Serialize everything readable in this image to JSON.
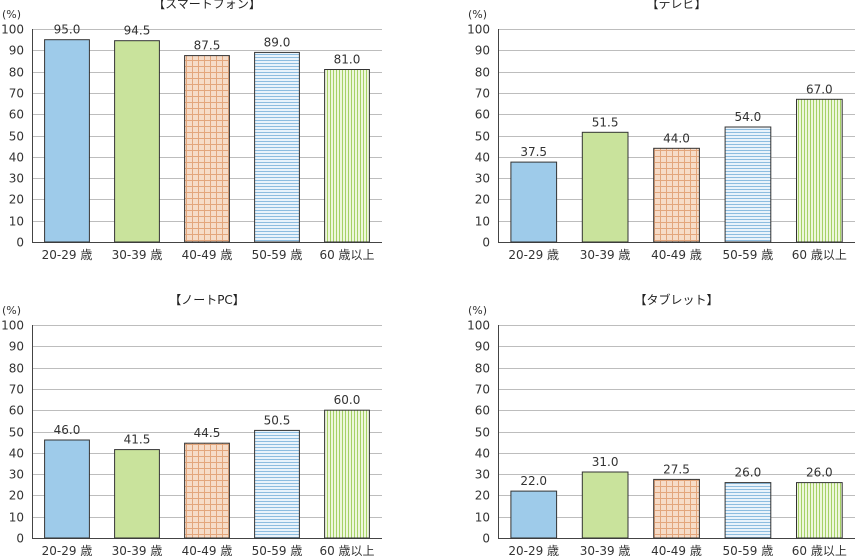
{
  "charts_meta": {
    "colors": {
      "c1": "#9ecbea",
      "c2": "#c9e39c",
      "c3_bg": "#f6dcc8",
      "c3_line": "#e3a67c",
      "c4_bg": "#e9f3fb",
      "c4_line": "#8dbde0",
      "c5_bg": "#eef7dc",
      "c5_line": "#a6d166"
    },
    "patterns": [
      "solid-blue",
      "solid-green",
      "grid-orange",
      "hstripe-blue",
      "vstripe-green"
    ]
  },
  "chart_data": [
    {
      "type": "bar",
      "title": "【スマートフォン】",
      "unit": "(%)",
      "categories": [
        "20-29 歳",
        "30-39 歳",
        "40-49 歳",
        "50-59 歳",
        "60 歳以上"
      ],
      "values": [
        95.0,
        94.5,
        87.5,
        89.0,
        81.0
      ],
      "value_labels": [
        "95.0",
        "94.5",
        "87.5",
        "89.0",
        "81.0"
      ],
      "ylim": [
        0,
        100
      ],
      "yticks": [
        0,
        10,
        20,
        30,
        40,
        50,
        60,
        70,
        80,
        90,
        100
      ],
      "grid": true,
      "legend": "none"
    },
    {
      "type": "bar",
      "title": "【テレビ】",
      "unit": "(%)",
      "categories": [
        "20-29 歳",
        "30-39 歳",
        "40-49 歳",
        "50-59 歳",
        "60 歳以上"
      ],
      "values": [
        37.5,
        51.5,
        44.0,
        54.0,
        67.0
      ],
      "value_labels": [
        "37.5",
        "51.5",
        "44.0",
        "54.0",
        "67.0"
      ],
      "ylim": [
        0,
        100
      ],
      "yticks": [
        0,
        10,
        20,
        30,
        40,
        50,
        60,
        70,
        80,
        90,
        100
      ],
      "grid": true,
      "legend": "none"
    },
    {
      "type": "bar",
      "title": "【ノートPC】",
      "unit": "(%)",
      "categories": [
        "20-29 歳",
        "30-39 歳",
        "40-49 歳",
        "50-59 歳",
        "60 歳以上"
      ],
      "values": [
        46.0,
        41.5,
        44.5,
        50.5,
        60.0
      ],
      "value_labels": [
        "46.0",
        "41.5",
        "44.5",
        "50.5",
        "60.0"
      ],
      "ylim": [
        0,
        100
      ],
      "yticks": [
        0,
        10,
        20,
        30,
        40,
        50,
        60,
        70,
        80,
        90,
        100
      ],
      "grid": true,
      "legend": "none"
    },
    {
      "type": "bar",
      "title": "【タブレット】",
      "unit": "(%)",
      "categories": [
        "20-29 歳",
        "30-39 歳",
        "40-49 歳",
        "50-59 歳",
        "60 歳以上"
      ],
      "values": [
        22.0,
        31.0,
        27.5,
        26.0,
        26.0
      ],
      "value_labels": [
        "22.0",
        "31.0",
        "27.5",
        "26.0",
        "26.0"
      ],
      "ylim": [
        0,
        100
      ],
      "yticks": [
        0,
        10,
        20,
        30,
        40,
        50,
        60,
        70,
        80,
        90,
        100
      ],
      "grid": true,
      "legend": "none"
    }
  ]
}
